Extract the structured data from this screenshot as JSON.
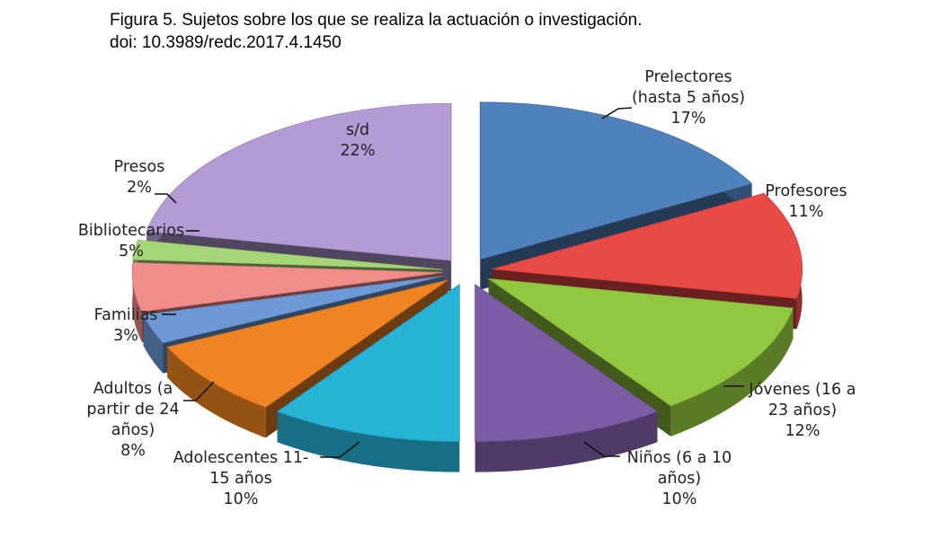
{
  "caption": {
    "title": "Figura 5. Sujetos sobre los que se realiza la actuación o investigación.",
    "doi": "doi: 10.3989/redc.2017.4.1450"
  },
  "chart_data": {
    "type": "pie",
    "style": "3d exploded pie",
    "slices": [
      {
        "label_lines": [
          "Prelectores",
          "(hasta 5 años)"
        ],
        "pct_label": "17%",
        "value": 17,
        "color": "#4f81bd"
      },
      {
        "label_lines": [
          "Profesores"
        ],
        "pct_label": "11%",
        "value": 11,
        "color": "#e84a46"
      },
      {
        "label_lines": [
          "Jóvenes (16 a",
          "23 años)"
        ],
        "pct_label": "12%",
        "value": 12,
        "color": "#92c83f"
      },
      {
        "label_lines": [
          "Niños (6 a 10",
          "años)"
        ],
        "pct_label": "10%",
        "value": 10,
        "color": "#7d5ca6"
      },
      {
        "label_lines": [
          "Adolescentes 11-",
          "15 años"
        ],
        "pct_label": "10%",
        "value": 10,
        "color": "#27b3d6"
      },
      {
        "label_lines": [
          "Adultos (a",
          "partir de 24",
          "años)"
        ],
        "pct_label": "8%",
        "value": 8,
        "color": "#f08422"
      },
      {
        "label_lines": [
          "Familias"
        ],
        "pct_label": "3%",
        "value": 3,
        "color": "#6d9ad6"
      },
      {
        "label_lines": [
          "Bibliotecarios"
        ],
        "pct_label": "5%",
        "value": 5,
        "color": "#f08c8a"
      },
      {
        "label_lines": [
          "Presos"
        ],
        "pct_label": "2%",
        "value": 2,
        "color": "#a6d678"
      },
      {
        "label_lines": [
          "s/d"
        ],
        "pct_label": "22%",
        "value": 22,
        "color": "#b49bd6"
      }
    ]
  }
}
